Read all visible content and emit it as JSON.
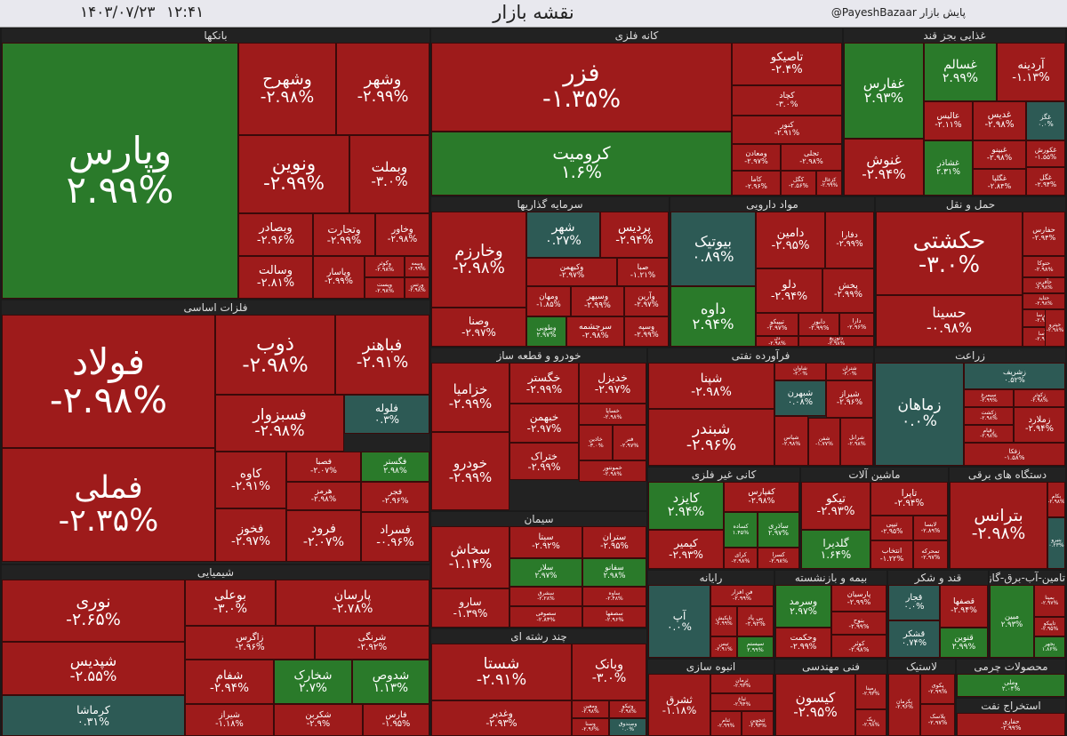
{
  "header": {
    "title": "نقشه بازار",
    "date": "۱۴۰۳/۰۷/۲۳",
    "time": "۱۲:۴۱",
    "credit": "@PayeshBazaar پایش بازار"
  },
  "colors": {
    "positive": "#2a7a2a",
    "negative": "#9e1b1b",
    "neutral": "#2d5a55",
    "background": "#1a1a1a",
    "sector_header": "#222222"
  },
  "chart_data": {
    "type": "treemap",
    "title": "نقشه بازار",
    "sectors": [
      {
        "name": "بانکها",
        "tiles": [
          {
            "name": "وپارس",
            "change": "۲.۹۹%"
          },
          {
            "name": "وشهر",
            "change": "-۲.۹۹%"
          },
          {
            "name": "وشهرح",
            "change": "-۲.۹۸%"
          },
          {
            "name": "ونوین",
            "change": "-۲.۹۹%"
          },
          {
            "name": "وبملت",
            "change": "-۳.۰%"
          },
          {
            "name": "وخاور",
            "change": "-۲.۹۸%"
          },
          {
            "name": "وتجارت",
            "change": "-۲.۹۹%"
          },
          {
            "name": "وبصادر",
            "change": "-۲.۹۶%"
          },
          {
            "name": "وسالت",
            "change": "-۲.۸۱%"
          },
          {
            "name": "وپاسار",
            "change": "-۲.۹۹%"
          },
          {
            "name": "وبیمه",
            "change": "-۲.۹۹%"
          },
          {
            "name": "وکوثر",
            "change": "-۲.۹۸%"
          },
          {
            "name": "وپست",
            "change": "-۲.۹۸%"
          },
          {
            "name": "ورتس",
            "change": "-۲.۹۸%"
          }
        ]
      },
      {
        "name": "کانه فلزی",
        "tiles": [
          {
            "name": "فزر",
            "change": "-۱.۳۵%"
          },
          {
            "name": "کرومیت",
            "change": "۱.۶%"
          },
          {
            "name": "تاصیکو",
            "change": "-۲.۴%"
          },
          {
            "name": "کچاد",
            "change": "-۳.۰%"
          },
          {
            "name": "کنور",
            "change": "-۲.۹۱%"
          },
          {
            "name": "ومعادن",
            "change": "-۲.۹۷%"
          },
          {
            "name": "تجلی",
            "change": "-۲.۹۸%"
          },
          {
            "name": "کاما",
            "change": "-۲.۹۶%"
          },
          {
            "name": "کگل",
            "change": "-۲.۵۶%"
          },
          {
            "name": "کزغال",
            "change": "-۲.۹۹%"
          }
        ]
      },
      {
        "name": "غذایی بجز قند",
        "tiles": [
          {
            "name": "غفارس",
            "change": "۲.۹۳%"
          },
          {
            "name": "غسالم",
            "change": "۲.۹۹%"
          },
          {
            "name": "آردینه",
            "change": "-۱.۱۳%"
          },
          {
            "name": "عالیس",
            "change": "-۲.۱۱%"
          },
          {
            "name": "غدیس",
            "change": "-۲.۹۸%"
          },
          {
            "name": "غگز",
            "change": "۰.۰%"
          },
          {
            "name": "غنوش",
            "change": "-۲.۹۴%"
          },
          {
            "name": "غشاذر",
            "change": "۲.۳۱%"
          },
          {
            "name": "غبینو",
            "change": "-۲.۹۸%"
          },
          {
            "name": "غگلپا",
            "change": "-۲.۸۴%"
          },
          {
            "name": "غکورش",
            "change": "-۱.۵۵%"
          },
          {
            "name": "غگل",
            "change": "-۲.۹۴%"
          }
        ]
      },
      {
        "name": "سرمایه گذاریها",
        "tiles": [
          {
            "name": "وخارزم",
            "change": "-۲.۹۸%"
          },
          {
            "name": "شهر",
            "change": "۰.۲۷%"
          },
          {
            "name": "پردیس",
            "change": "-۲.۹۴%"
          },
          {
            "name": "وکبهمن",
            "change": "-۲.۹۷%"
          },
          {
            "name": "صبا",
            "change": "-۱.۲۱%"
          },
          {
            "name": "وصنا",
            "change": "-۲.۹۷%"
          },
          {
            "name": "ومهان",
            "change": "-۱.۸۵%"
          },
          {
            "name": "وسپهر",
            "change": "-۲.۹۹%"
          },
          {
            "name": "وآرین",
            "change": "-۲.۹۷%"
          },
          {
            "name": "وطوبی",
            "change": "۲.۹۷%"
          },
          {
            "name": "سرچشمه",
            "change": "-۲.۹۸%"
          },
          {
            "name": "وسپه",
            "change": "-۲.۹۹%"
          }
        ]
      },
      {
        "name": "مواد دارویی",
        "tiles": [
          {
            "name": "بیوتیک",
            "change": "۰.۸۹%"
          },
          {
            "name": "دامین",
            "change": "-۲.۹۵%"
          },
          {
            "name": "دفارا",
            "change": "-۲.۹۹%"
          },
          {
            "name": "داوه",
            "change": "۲.۹۴%"
          },
          {
            "name": "دلو",
            "change": "-۲.۹۴%"
          },
          {
            "name": "پخش",
            "change": "-۲.۹۹%"
          },
          {
            "name": "تیپیکو",
            "change": "-۲.۹۷%"
          },
          {
            "name": "دابور",
            "change": "-۲.۹۹%"
          },
          {
            "name": "دارا",
            "change": "-۲.۹۶%"
          },
          {
            "name": "دل",
            "change": "-۲.۹۸%"
          },
          {
            "name": "دتوزیع",
            "change": "-۲.۹۸%"
          }
        ]
      },
      {
        "name": "حمل و نقل",
        "tiles": [
          {
            "name": "حکشتی",
            "change": "-۳.۰%"
          },
          {
            "name": "حفارس",
            "change": "-۲.۹۴%"
          },
          {
            "name": "حسینا",
            "change": "-۰.۹۸%"
          },
          {
            "name": "حتوکا",
            "change": "-۲.۹۸%"
          },
          {
            "name": "حآفرین",
            "change": "-۲.۹۸%"
          },
          {
            "name": "حتاید",
            "change": "-۲.۹۸%"
          },
          {
            "name": "حپارسا",
            "change": "-۲.۹۹%"
          },
          {
            "name": "حآسا",
            "change": "-۲.۹۸%"
          },
          {
            "name": "حپترو",
            "change": "-۲.۹۸%"
          }
        ]
      },
      {
        "name": "فلزات اساسی",
        "tiles": [
          {
            "name": "فولاد",
            "change": "-۲.۹۸%"
          },
          {
            "name": "فملی",
            "change": "-۲.۳۵%"
          },
          {
            "name": "ذوب",
            "change": "-۲.۹۸%"
          },
          {
            "name": "فباهنر",
            "change": "-۲.۹۱%"
          },
          {
            "name": "فسبزوار",
            "change": "-۲.۹۸%"
          },
          {
            "name": "فلوله",
            "change": "۰.۳%"
          },
          {
            "name": "کاوه",
            "change": "-۲.۹۱%"
          },
          {
            "name": "فصبا",
            "change": "-۲.۰۷%"
          },
          {
            "name": "فگستر",
            "change": "۲.۹۸%"
          },
          {
            "name": "هرمز",
            "change": "-۲.۹۸%"
          },
          {
            "name": "فجر",
            "change": "-۲.۹۶%"
          },
          {
            "name": "فخوز",
            "change": "-۲.۹۷%"
          },
          {
            "name": "فرود",
            "change": "-۲.۰۷%"
          },
          {
            "name": "فسراد",
            "change": "-۰.۹۶%"
          }
        ]
      },
      {
        "name": "خودرو و قطعه ساز",
        "tiles": [
          {
            "name": "خزامیا",
            "change": "-۲.۹۹%"
          },
          {
            "name": "خگستر",
            "change": "-۲.۹۹%"
          },
          {
            "name": "خدیزل",
            "change": "-۲.۹۷%"
          },
          {
            "name": "خساپا",
            "change": "-۲.۹۸%"
          },
          {
            "name": "خبهمن",
            "change": "-۲.۹۷%"
          },
          {
            "name": "خاذین",
            "change": "-۳.۰%"
          },
          {
            "name": "فنر",
            "change": "-۲.۹۷%"
          },
          {
            "name": "خودرو",
            "change": "-۲.۹۹%"
          },
          {
            "name": "ختراک",
            "change": "-۲.۹۹%"
          },
          {
            "name": "خمونتور",
            "change": "-۲.۹۸%"
          }
        ]
      },
      {
        "name": "فرآورده نفتی",
        "tiles": [
          {
            "name": "شپنا",
            "change": "-۲.۹۸%"
          },
          {
            "name": "شاوان",
            "change": "-۳.۰%"
          },
          {
            "name": "شتران",
            "change": "-۳.۰%"
          },
          {
            "name": "شبندر",
            "change": "-۲.۹۶%"
          },
          {
            "name": "شبهرن",
            "change": "۰.۰۸%"
          },
          {
            "name": "شیراز",
            "change": "-۲.۹۶%"
          },
          {
            "name": "شپاس",
            "change": "-۲.۹۸%"
          },
          {
            "name": "شفن",
            "change": "-۱.۷۷%"
          },
          {
            "name": "شرانل",
            "change": "-۲.۹۸%"
          }
        ]
      },
      {
        "name": "زراعت",
        "tiles": [
          {
            "name": "زماهان",
            "change": "۰.۰%"
          },
          {
            "name": "زشریف",
            "change": "۰.۵۲%"
          },
          {
            "name": "سیمرغ",
            "change": "-۲.۹۹%"
          },
          {
            "name": "زکوثر",
            "change": "-۲.۹۸%"
          },
          {
            "name": "زکشت",
            "change": "-۲.۹۸%"
          },
          {
            "name": "زقیام",
            "change": "-۲.۹۸%"
          },
          {
            "name": "زملارد",
            "change": "-۲.۹۴%"
          },
          {
            "name": "زفکا",
            "change": "-۱.۵۸%"
          }
        ]
      },
      {
        "name": "سیمان",
        "tiles": [
          {
            "name": "سخاش",
            "change": "-۱.۱۴%"
          },
          {
            "name": "سیتا",
            "change": "-۲.۹۲%"
          },
          {
            "name": "ستران",
            "change": "-۲.۹۵%"
          },
          {
            "name": "سلار",
            "change": "۲.۹۷%"
          },
          {
            "name": "سفانو",
            "change": "۲.۹۸%"
          },
          {
            "name": "سارو",
            "change": "-۱.۳۹%"
          },
          {
            "name": "سشرق",
            "change": "-۲.۲۸%"
          },
          {
            "name": "ساوه",
            "change": "-۲.۴۸%"
          },
          {
            "name": "سصوفی",
            "change": "-۲.۸۳%"
          },
          {
            "name": "سصفها",
            "change": "-۲.۹۶%"
          }
        ]
      },
      {
        "name": "کانی غیر فلزی",
        "tiles": [
          {
            "name": "کایزد",
            "change": "۲.۹۴%"
          },
          {
            "name": "کفپارس",
            "change": "-۲.۹۸%"
          },
          {
            "name": "کساده",
            "change": "۱.۴۵%"
          },
          {
            "name": "ساذری",
            "change": "۲.۹۷%"
          },
          {
            "name": "کیمیر",
            "change": "-۲.۹۳%"
          },
          {
            "name": "کرای",
            "change": "-۲.۹۸%"
          },
          {
            "name": "کسرا",
            "change": "-۲.۹۸%"
          }
        ]
      },
      {
        "name": "ماشین آلات",
        "tiles": [
          {
            "name": "تیکو",
            "change": "-۲.۹۳%"
          },
          {
            "name": "تاپرا",
            "change": "-۲.۹۴%"
          },
          {
            "name": "تیپی",
            "change": "-۲.۹۵%"
          },
          {
            "name": "لابسا",
            "change": "-۲.۸۹%"
          },
          {
            "name": "گلدیرا",
            "change": "۱.۶۴%"
          },
          {
            "name": "انتخاب",
            "change": "-۱.۲۲%"
          },
          {
            "name": "تمحرکه",
            "change": "-۲.۹۷%"
          }
        ]
      },
      {
        "name": "دستگاه های برقی",
        "tiles": [
          {
            "name": "بترانس",
            "change": "-۲.۹۸%"
          },
          {
            "name": "بکام",
            "change": "-۲.۹۸%"
          },
          {
            "name": "بنیرو",
            "change": "۰.۲۳%"
          }
        ]
      },
      {
        "name": "چند رشته ای",
        "tiles": [
          {
            "name": "شستا",
            "change": "-۲.۹۱%"
          },
          {
            "name": "وبانک",
            "change": "-۳.۰%"
          },
          {
            "name": "وغدیر",
            "change": "-۲.۹۳%"
          },
          {
            "name": "ومعین",
            "change": "-۲.۹۸%"
          },
          {
            "name": "وتیکو",
            "change": "-۲.۹۸%"
          },
          {
            "name": "وسنا",
            "change": "-۲.۹۶%"
          },
          {
            "name": "وصندوق",
            "change": "۰.۰%"
          }
        ]
      },
      {
        "name": "رایانه",
        "tiles": [
          {
            "name": "آپ",
            "change": "۰.۰%"
          },
          {
            "name": "فن افزار",
            "change": "-۲.۹۹%"
          },
          {
            "name": "تاپکیش",
            "change": "-۲.۹۹%"
          },
          {
            "name": "پی پاد",
            "change": "-۲.۹۲%"
          },
          {
            "name": "تیس",
            "change": "-۲.۹۱%"
          },
          {
            "name": "سیستم",
            "change": "۲.۹۹%"
          },
          {
            "name": "رافو",
            "change": "-۲.۹۸%"
          }
        ]
      },
      {
        "name": "بیمه و بازنشسته",
        "tiles": [
          {
            "name": "وسرمد",
            "change": "۲.۹۷%"
          },
          {
            "name": "پارسیان",
            "change": "-۲.۹۹%"
          },
          {
            "name": "بنوح",
            "change": "-۲.۹۹%"
          },
          {
            "name": "وحکمت",
            "change": "-۲.۹۹%"
          },
          {
            "name": "کوثر",
            "change": "-۲.۹۸%"
          }
        ]
      },
      {
        "name": "قند و شکر",
        "tiles": [
          {
            "name": "قجار",
            "change": "۰.۰%"
          },
          {
            "name": "قصفها",
            "change": "-۲.۹۴%"
          },
          {
            "name": "قشکر",
            "change": "۰.۷۴%"
          },
          {
            "name": "قنوین",
            "change": "۲.۹۹%"
          }
        ]
      },
      {
        "name": "تامین-آب-برق-گاز",
        "tiles": [
          {
            "name": "مبین",
            "change": "۲.۹۳%"
          },
          {
            "name": "بمپنا",
            "change": "-۲.۹۷%"
          },
          {
            "name": "تاپیکو",
            "change": "-۲.۹۵%"
          },
          {
            "name": "بجهر",
            "change": "۱.۸۶%"
          }
        ]
      },
      {
        "name": "انبوه سازی",
        "tiles": [
          {
            "name": "ثشرق",
            "change": "-۱.۱۸%"
          },
          {
            "name": "ثرمان",
            "change": "-۲.۹۳%"
          },
          {
            "name": "ثباغ",
            "change": "-۲.۹۴%"
          },
          {
            "name": "ثنام",
            "change": "-۲.۹۹%"
          },
          {
            "name": "ثتجوین",
            "change": "-۲.۹۳%"
          },
          {
            "name": "ثعمران",
            "change": "۲.۹۷%"
          },
          {
            "name": "ثمسکن",
            "change": "-۲.۹۸%"
          }
        ]
      },
      {
        "name": "فنی مهندسی",
        "tiles": [
          {
            "name": "کیسون",
            "change": "-۲.۹۵%"
          },
          {
            "name": "رمپنا",
            "change": "-۲.۹۳%"
          },
          {
            "name": "ریک",
            "change": "-۲.۹۸%"
          }
        ]
      },
      {
        "name": "لاستیک",
        "tiles": [
          {
            "name": "پکرمان",
            "change": "-۲.۹۶%"
          },
          {
            "name": "پکوی",
            "change": "-۲.۹۹%"
          },
          {
            "name": "پلاسک",
            "change": "-۲.۹۷%"
          }
        ]
      },
      {
        "name": "محصولات چرمی",
        "tiles": [
          {
            "name": "وملی",
            "change": "۲.۰۴%"
          }
        ]
      },
      {
        "name": "استخراج نفت",
        "tiles": [
          {
            "name": "حفاری",
            "change": "-۲.۹۹%"
          }
        ]
      },
      {
        "name": "شیمیایی",
        "tiles": [
          {
            "name": "نوری",
            "change": "-۲.۶۵%"
          },
          {
            "name": "بوعلی",
            "change": "-۳.۰%"
          },
          {
            "name": "پارسان",
            "change": "-۲.۷۸%"
          },
          {
            "name": "شپدیس",
            "change": "-۲.۵۵%"
          },
          {
            "name": "زاگرس",
            "change": "-۲.۹۶%"
          },
          {
            "name": "شرنگی",
            "change": "-۲.۹۲%"
          },
          {
            "name": "شفام",
            "change": "-۲.۹۴%"
          },
          {
            "name": "شخارک",
            "change": "۲.۷%"
          },
          {
            "name": "شدوص",
            "change": "۱.۱۳%"
          },
          {
            "name": "کرماشا",
            "change": "۰.۳۱%"
          },
          {
            "name": "شیراز",
            "change": "-۱.۱۸%"
          },
          {
            "name": "شکربن",
            "change": "-۲.۹%"
          },
          {
            "name": "فارس",
            "change": "-۱.۹۵%"
          }
        ]
      }
    ]
  }
}
